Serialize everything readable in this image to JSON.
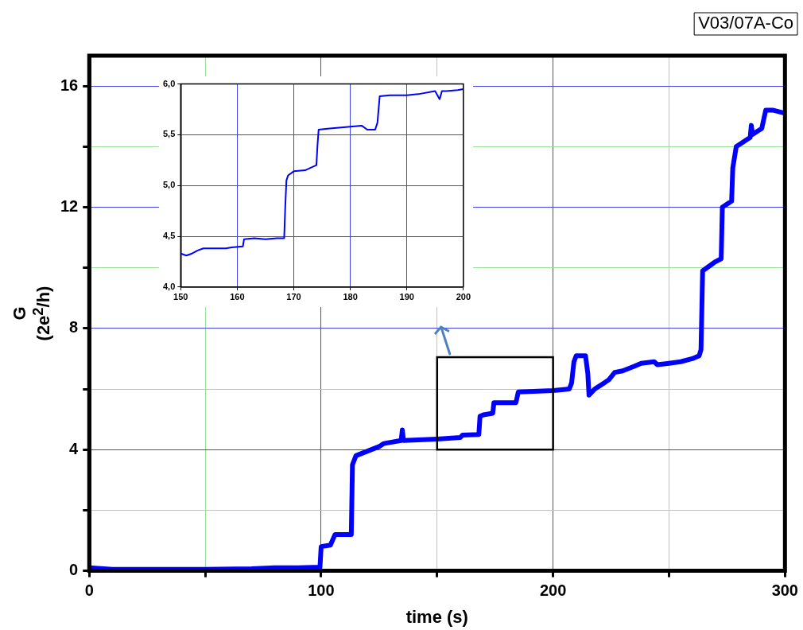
{
  "chart_data": [
    {
      "type": "line",
      "xlabel": "time (s)",
      "ylabel": "G\n(2e$^{2}$/h)",
      "annotations": [
        "V03/07A-Co"
      ],
      "xlim": [
        0,
        300
      ],
      "xticks": [
        0,
        {
          "value": 50,
          "label": null
        },
        100,
        {
          "value": 150,
          "label": null
        },
        200,
        {
          "value": 250,
          "label": null
        },
        300
      ],
      "ylim": [
        0,
        17
      ],
      "yticks": [
        0,
        {
          "value": 2,
          "label": null
        },
        4,
        {
          "value": 6,
          "label": null
        },
        8,
        {
          "value": 10,
          "label": null
        },
        12,
        {
          "value": 14,
          "label": null
        },
        16
      ],
      "grid": true,
      "legend": false,
      "marker": "none",
      "line_style": "solid",
      "series": [
        {
          "color": "#0000ff",
          "x": [
            0,
            10,
            30,
            50,
            70,
            80,
            90,
            99.5,
            100,
            104,
            106,
            113,
            113.5,
            115,
            120,
            125,
            127,
            134.5,
            135,
            135.5,
            150,
            160,
            161,
            168,
            168.5,
            170,
            174,
            174.5,
            184,
            185,
            200,
            207,
            208,
            209,
            210,
            214,
            215,
            215.5,
            218,
            222,
            224,
            226.6,
            230,
            235,
            238,
            243.6,
            245,
            250,
            255,
            260,
            263,
            263.8,
            264.5,
            270,
            272.5,
            273,
            277,
            277.5,
            279,
            285,
            285.5,
            286,
            290,
            291.7,
            295,
            300
          ],
          "values": [
            0.1,
            0.05,
            0.05,
            0.05,
            0.07,
            0.1,
            0.1,
            0.12,
            0.8,
            0.85,
            1.2,
            1.2,
            3.5,
            3.8,
            3.95,
            4.1,
            4.2,
            4.3,
            4.65,
            4.3,
            4.35,
            4.4,
            4.48,
            4.5,
            5.1,
            5.15,
            5.2,
            5.55,
            5.55,
            5.9,
            5.95,
            6.0,
            6.2,
            6.9,
            7.1,
            7.1,
            6.5,
            5.8,
            6.0,
            6.2,
            6.3,
            6.55,
            6.6,
            6.75,
            6.85,
            6.9,
            6.8,
            6.85,
            6.9,
            7.0,
            7.1,
            7.3,
            9.9,
            10.2,
            10.3,
            12.0,
            12.2,
            13.3,
            14.0,
            14.3,
            14.7,
            14.4,
            14.6,
            15.2,
            15.2,
            15.1
          ]
        }
      ]
    },
    {
      "type": "line",
      "xlim": [
        150,
        200
      ],
      "xticks": [
        150,
        160,
        170,
        180,
        190,
        200
      ],
      "ylim": [
        4,
        6
      ],
      "yticks": [
        {
          "value": 4,
          "label": "4,0"
        },
        {
          "value": 4.5,
          "label": "4,5"
        },
        {
          "value": 5,
          "label": "5,0"
        },
        {
          "value": 5.5,
          "label": "5,5"
        },
        {
          "value": 6,
          "label": "6,0"
        }
      ],
      "grid": true,
      "legend": false,
      "marker": "none",
      "line_style": "solid",
      "series": [
        {
          "color": "#0000ff",
          "x": [
            150,
            151,
            152,
            153,
            154,
            156,
            158,
            159,
            161,
            161.2,
            163,
            165,
            167,
            168.3,
            168.5,
            168.7,
            169,
            170,
            172,
            174,
            174.2,
            174.4,
            176,
            178,
            180,
            182,
            183,
            184.4,
            184.8,
            185.2,
            187,
            190,
            192,
            195,
            195.8,
            196.2,
            197,
            199,
            200
          ],
          "values": [
            4.33,
            4.31,
            4.33,
            4.36,
            4.38,
            4.38,
            4.38,
            4.39,
            4.4,
            4.47,
            4.48,
            4.47,
            4.48,
            4.48,
            4.8,
            5.05,
            5.1,
            5.14,
            5.15,
            5.2,
            5.4,
            5.55,
            5.56,
            5.57,
            5.58,
            5.59,
            5.55,
            5.55,
            5.62,
            5.88,
            5.89,
            5.89,
            5.9,
            5.93,
            5.85,
            5.93,
            5.93,
            5.94,
            5.95
          ]
        }
      ]
    }
  ]
}
